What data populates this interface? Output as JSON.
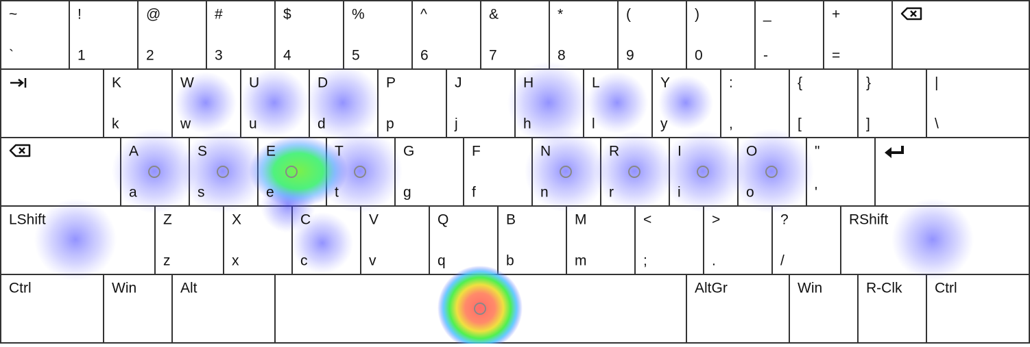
{
  "keyboard": {
    "rows": [
      {
        "keys": [
          {
            "upper": "~",
            "lower": "`"
          },
          {
            "upper": "!",
            "lower": "1"
          },
          {
            "upper": "@",
            "lower": "2"
          },
          {
            "upper": "#",
            "lower": "3"
          },
          {
            "upper": "$",
            "lower": "4"
          },
          {
            "upper": "%",
            "lower": "5"
          },
          {
            "upper": "^",
            "lower": "6"
          },
          {
            "upper": "&",
            "lower": "7"
          },
          {
            "upper": "*",
            "lower": "8"
          },
          {
            "upper": "(",
            "lower": "9"
          },
          {
            "upper": ")",
            "lower": "0"
          },
          {
            "upper": "_",
            "lower": "-"
          },
          {
            "upper": "+",
            "lower": "="
          }
        ]
      },
      {
        "keys": [
          {
            "upper": "K",
            "lower": "k"
          },
          {
            "upper": "W",
            "lower": "w"
          },
          {
            "upper": "U",
            "lower": "u"
          },
          {
            "upper": "D",
            "lower": "d"
          },
          {
            "upper": "P",
            "lower": "p"
          },
          {
            "upper": "J",
            "lower": "j"
          },
          {
            "upper": "H",
            "lower": "h"
          },
          {
            "upper": "L",
            "lower": "l"
          },
          {
            "upper": "Y",
            "lower": "y"
          },
          {
            "upper": ":",
            "lower": ","
          },
          {
            "upper": "{",
            "lower": "["
          },
          {
            "upper": "}",
            "lower": "]"
          },
          {
            "upper": "|",
            "lower": "\\"
          }
        ]
      },
      {
        "keys": [
          {
            "upper": "A",
            "lower": "a"
          },
          {
            "upper": "S",
            "lower": "s"
          },
          {
            "upper": "E",
            "lower": "e"
          },
          {
            "upper": "T",
            "lower": "t"
          },
          {
            "upper": "G",
            "lower": "g"
          },
          {
            "upper": "F",
            "lower": "f"
          },
          {
            "upper": "N",
            "lower": "n"
          },
          {
            "upper": "R",
            "lower": "r"
          },
          {
            "upper": "I",
            "lower": "i"
          },
          {
            "upper": "O",
            "lower": "o"
          },
          {
            "upper": "\"",
            "lower": "'"
          }
        ]
      },
      {
        "keys": [
          {
            "label": "LShift"
          },
          {
            "upper": "Z",
            "lower": "z"
          },
          {
            "upper": "X",
            "lower": "x"
          },
          {
            "upper": "C",
            "lower": "c"
          },
          {
            "upper": "V",
            "lower": "v"
          },
          {
            "upper": "Q",
            "lower": "q"
          },
          {
            "upper": "B",
            "lower": "b"
          },
          {
            "upper": "M",
            "lower": "m"
          },
          {
            "upper": "<",
            "lower": ";"
          },
          {
            "upper": ">",
            "lower": "."
          },
          {
            "upper": "?",
            "lower": "/"
          },
          {
            "label": "RShift"
          }
        ]
      },
      {
        "keys": [
          {
            "label": "Ctrl"
          },
          {
            "label": "Win"
          },
          {
            "label": "Alt"
          },
          {
            "label": "AltGr"
          },
          {
            "label": "Win"
          },
          {
            "label": "R-Clk"
          },
          {
            "label": "Ctrl"
          }
        ]
      }
    ]
  }
}
